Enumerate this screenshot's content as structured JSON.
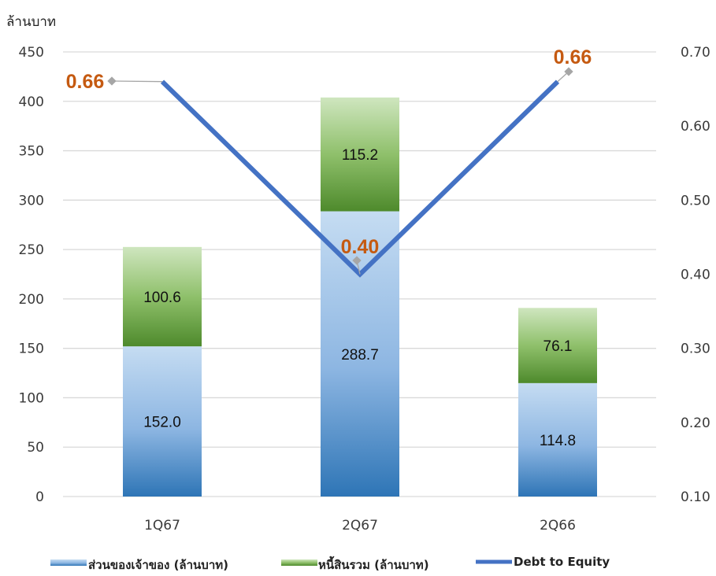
{
  "chart_data": {
    "type": "bar",
    "stacked": true,
    "y_unit_label": "ล้านบาท",
    "categories": [
      "1Q67",
      "2Q67",
      "2Q66"
    ],
    "series": [
      {
        "name": "ส่วนของเจ้าของ (ล้านบาท)",
        "values": [
          152.0,
          288.7,
          114.8
        ],
        "axis": "left",
        "color_top": "#bdd7ee",
        "color_bottom": "#2e75b6"
      },
      {
        "name": "หนี้สินรวม (ล้านบาท)",
        "values": [
          100.6,
          115.2,
          76.1
        ],
        "axis": "left",
        "color_top": "#c5e0b4",
        "color_bottom": "#4f8a2e"
      },
      {
        "name": "Debt to Equity",
        "type": "line",
        "values": [
          0.66,
          0.4,
          0.66
        ],
        "axis": "right",
        "color": "#4472c4"
      }
    ],
    "bar_labels": [
      [
        "152.0",
        "288.7",
        "114.8"
      ],
      [
        "100.6",
        "115.2",
        "76.1"
      ]
    ],
    "ratio_labels": [
      "0.66",
      "0.40",
      "0.66"
    ],
    "ratio_label_color": "#c55a11",
    "y_left": {
      "min": 0,
      "max": 450,
      "ticks": [
        0,
        50,
        100,
        150,
        200,
        250,
        300,
        350,
        400,
        450
      ]
    },
    "y_right": {
      "min": 0.1,
      "max": 0.7,
      "ticks": [
        "0.10",
        "0.20",
        "0.30",
        "0.40",
        "0.50",
        "0.60",
        "0.70"
      ]
    },
    "grid": true,
    "legend_position": "bottom"
  }
}
